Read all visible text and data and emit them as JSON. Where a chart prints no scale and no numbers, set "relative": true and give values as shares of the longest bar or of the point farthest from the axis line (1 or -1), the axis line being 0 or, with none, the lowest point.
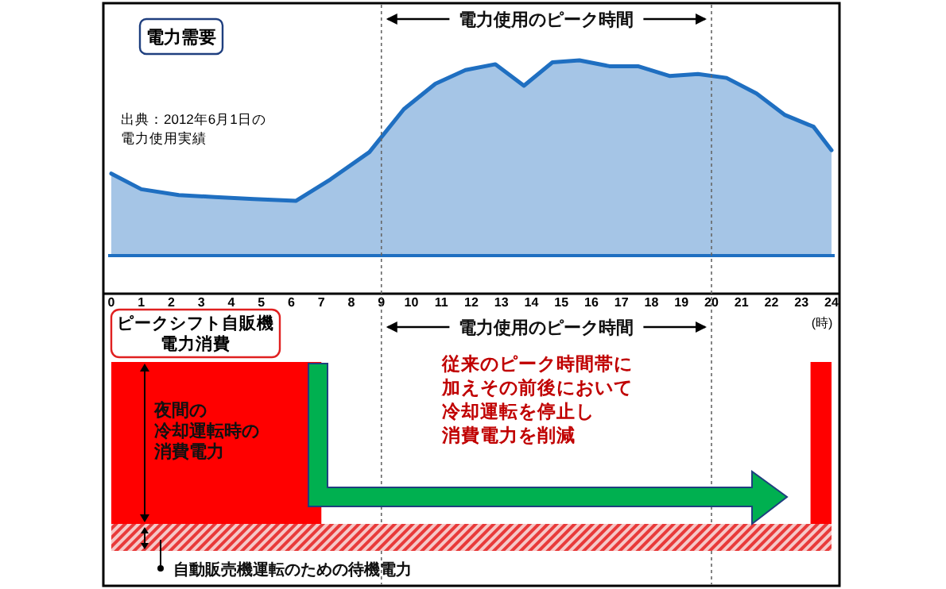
{
  "chart_data": [
    {
      "type": "area",
      "title": "電力需要",
      "relative": true,
      "color": "#1f6fc1",
      "xlabel": "(時)",
      "x": [
        0,
        1,
        2.25,
        3.45,
        4.75,
        6.15,
        7.3,
        8.6,
        9.75,
        10.8,
        11.8,
        12.8,
        13.75,
        14.7,
        15.6,
        16.6,
        17.55,
        18.6,
        19.55,
        20.5,
        21.5,
        22.45,
        23.4,
        24
      ],
      "values": [
        0.42,
        0.34,
        0.31,
        0.3,
        0.29,
        0.28,
        0.39,
        0.53,
        0.75,
        0.88,
        0.95,
        0.98,
        0.87,
        0.99,
        1,
        0.97,
        0.97,
        0.92,
        0.93,
        0.91,
        0.83,
        0.72,
        0.66,
        0.54
      ],
      "xlim": [
        0,
        24
      ],
      "xticks": [
        0,
        1,
        2,
        3,
        4,
        5,
        6,
        7,
        8,
        9,
        10,
        11,
        12,
        13,
        14,
        15,
        16,
        17,
        18,
        19,
        20,
        21,
        22,
        23,
        24
      ],
      "tick_labels": "x",
      "ref_lines": [
        {
          "axis": "x",
          "value": 9,
          "line_style": "dotted"
        },
        {
          "axis": "x",
          "value": 20,
          "line_style": "dotted"
        }
      ],
      "annotations": [
        "電力使用のピーク時間",
        "出典：2012年6月1日の電力使用実績"
      ]
    },
    {
      "type": "other",
      "title": "ピークシフト自販機電力消費",
      "annotations": [
        "電力使用のピーク時間",
        "夜間の冷却運転時の消費電力",
        "従来のピーク時間帯に加えその前後において冷却運転を停止し消費電力を削減",
        "自動販売機運転のための待機電力"
      ]
    }
  ]
}
